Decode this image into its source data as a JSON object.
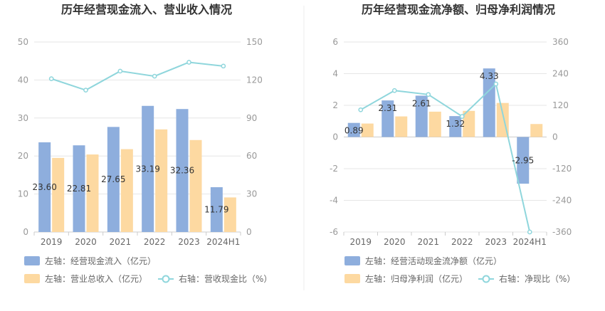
{
  "chart_data": [
    {
      "type": "bar",
      "title": "历年经营现金流入、营业收入情况",
      "categories": [
        "2019",
        "2020",
        "2021",
        "2022",
        "2023",
        "2024H1"
      ],
      "left_axis": {
        "min": 0,
        "max": 50,
        "ticks": [
          "0",
          "10",
          "20",
          "30",
          "40",
          "50"
        ]
      },
      "right_axis": {
        "min": 0,
        "max": 150,
        "ticks": [
          "0",
          "30",
          "60",
          "90",
          "120",
          "150"
        ]
      },
      "series": [
        {
          "name": "左轴：经营现金流入（亿元）",
          "kind": "bar",
          "axis": "left",
          "color": "#8eaedd",
          "values": [
            23.6,
            22.81,
            27.65,
            33.19,
            32.36,
            11.79
          ],
          "labels": [
            "23.60",
            "22.81",
            "27.65",
            "33.19",
            "32.36",
            "11.79"
          ]
        },
        {
          "name": "左轴：营业总收入（亿元）",
          "kind": "bar",
          "axis": "left",
          "color": "#fdd9a1",
          "values": [
            19.5,
            20.4,
            21.8,
            27.0,
            24.2,
            9.1
          ]
        },
        {
          "name": "右轴：营收现金比（%）",
          "kind": "line",
          "axis": "right",
          "color": "#8fd6dc",
          "values": [
            121,
            112,
            127,
            123,
            134,
            131
          ]
        }
      ],
      "grid": true,
      "legend_position": "bottom"
    },
    {
      "type": "bar",
      "title": "历年经营现金流净额、归母净利润情况",
      "categories": [
        "2019",
        "2020",
        "2021",
        "2022",
        "2023",
        "2024H1"
      ],
      "left_axis": {
        "min": -6,
        "max": 6,
        "ticks": [
          "-6",
          "-4",
          "-2",
          "0",
          "2",
          "4",
          "6"
        ]
      },
      "right_axis": {
        "min": -360,
        "max": 360,
        "ticks": [
          "-360",
          "-240",
          "-120",
          "0",
          "120",
          "240",
          "360"
        ]
      },
      "series": [
        {
          "name": "左轴：经营活动现金流净额（亿元）",
          "kind": "bar",
          "axis": "left",
          "color": "#8eaedd",
          "values": [
            0.89,
            2.31,
            2.61,
            1.32,
            4.33,
            -2.95
          ],
          "labels": [
            "0.89",
            "2.31",
            "2.61",
            "1.32",
            "4.33",
            "-2.95"
          ]
        },
        {
          "name": "左轴：归母净利润（亿元）",
          "kind": "bar",
          "axis": "left",
          "color": "#fdd9a1",
          "values": [
            0.85,
            1.3,
            1.6,
            1.65,
            2.15,
            0.82
          ]
        },
        {
          "name": "右轴：净现比（%）",
          "kind": "line",
          "axis": "right",
          "color": "#8fd6dc",
          "values": [
            103,
            176,
            161,
            78,
            201,
            -360
          ]
        }
      ],
      "grid": true,
      "legend_position": "bottom"
    }
  ]
}
